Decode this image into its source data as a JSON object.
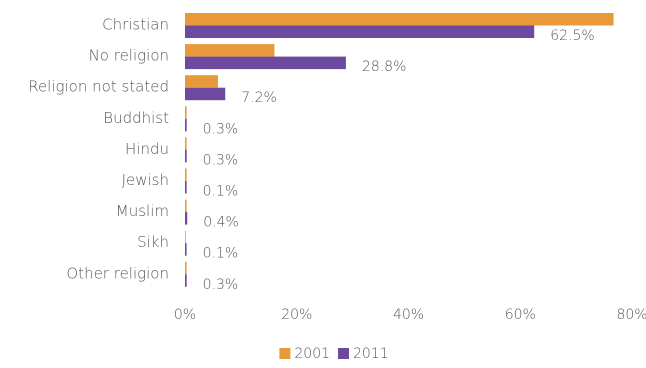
{
  "chart_data": {
    "type": "bar",
    "orientation": "horizontal",
    "categories": [
      "Christian",
      "No religion",
      "Religion not stated",
      "Buddhist",
      "Hindu",
      "Jewish",
      "Muslim",
      "Sikh",
      "Other religion"
    ],
    "series": [
      {
        "name": "2001",
        "color": "#E8993A",
        "values": [
          76.7,
          16.0,
          5.9,
          0.2,
          0.1,
          0.1,
          0.2,
          0.0,
          0.2
        ]
      },
      {
        "name": "2011",
        "color": "#6D4AA0",
        "values": [
          62.5,
          28.8,
          7.2,
          0.3,
          0.3,
          0.1,
          0.4,
          0.1,
          0.3
        ],
        "data_labels": [
          "62.5%",
          "28.8%",
          "7.2%",
          "0.3%",
          "0.3%",
          "0.1%",
          "0.4%",
          "0.1%",
          "0.3%"
        ]
      }
    ],
    "xlim": [
      0,
      80
    ],
    "xticks": [
      0,
      20,
      40,
      60,
      80
    ],
    "xtick_labels": [
      "0%",
      "20%",
      "40%",
      "60%",
      "80%"
    ],
    "grid": false,
    "legend_position": "bottom",
    "title": "",
    "xlabel": "",
    "ylabel": ""
  }
}
